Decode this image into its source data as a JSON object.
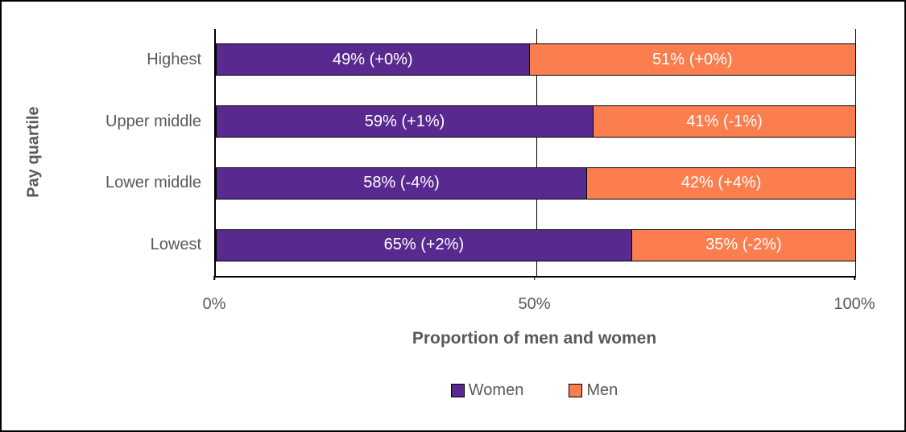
{
  "chart_data": {
    "type": "bar",
    "subtype": "horizontal-stacked-100pct",
    "categories": [
      "Highest",
      "Upper middle",
      "Lower middle",
      "Lowest"
    ],
    "series": [
      {
        "name": "Women",
        "color": "#582A90",
        "values": [
          49,
          59,
          58,
          65
        ],
        "labels": [
          "49% (+0%)",
          "59% (+1%)",
          "58% (-4%)",
          "65% (+2%)"
        ]
      },
      {
        "name": "Men",
        "color": "#FC7E4E",
        "values": [
          51,
          41,
          42,
          35
        ],
        "labels": [
          "51% (+0%)",
          "41% (-1%)",
          "42% (+4%)",
          "35% (-2%)"
        ]
      }
    ],
    "title": "",
    "xlabel": "Proportion of men and women",
    "ylabel": "Pay quartile",
    "x_ticks": [
      "0%",
      "50%",
      "100%"
    ],
    "xlim": [
      0,
      100
    ],
    "grid": "vertical gridlines at 0%, 50%, 100%",
    "legend_position": "bottom-center",
    "data_label_color": "#ffffff",
    "bar_border_color": "#000000"
  },
  "colors": {
    "text": "#595959",
    "background": "#ffffff",
    "figure_border": "#000000"
  }
}
